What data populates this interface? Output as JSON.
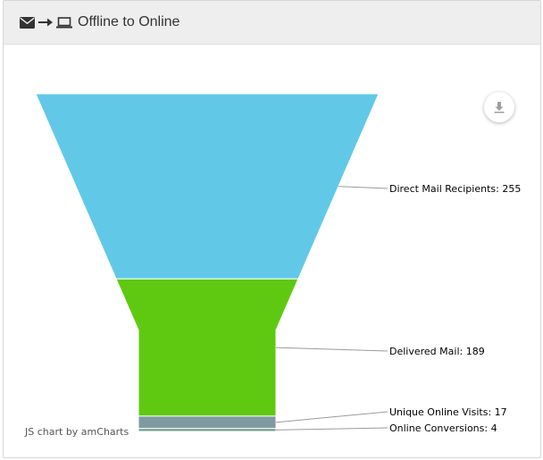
{
  "header": {
    "title": "Offline to Online",
    "icons": [
      "envelope-icon",
      "arrow-right-icon",
      "laptop-icon"
    ]
  },
  "export": {
    "icon": "download-icon"
  },
  "credit": "JS chart by amCharts",
  "chart_data": {
    "type": "funnel",
    "title": "",
    "categories": [
      "Direct Mail Recipients",
      "Delivered Mail",
      "Unique Online Visits",
      "Online Conversions"
    ],
    "values": [
      255,
      189,
      17,
      4
    ],
    "labels": [
      "Direct Mail Recipients: 255",
      "Delivered Mail: 189",
      "Unique Online Visits: 17",
      "Online Conversions: 4"
    ],
    "colors": [
      "#62c8e8",
      "#5fc911",
      "#7f9aa0",
      "#6e9e8e"
    ]
  }
}
